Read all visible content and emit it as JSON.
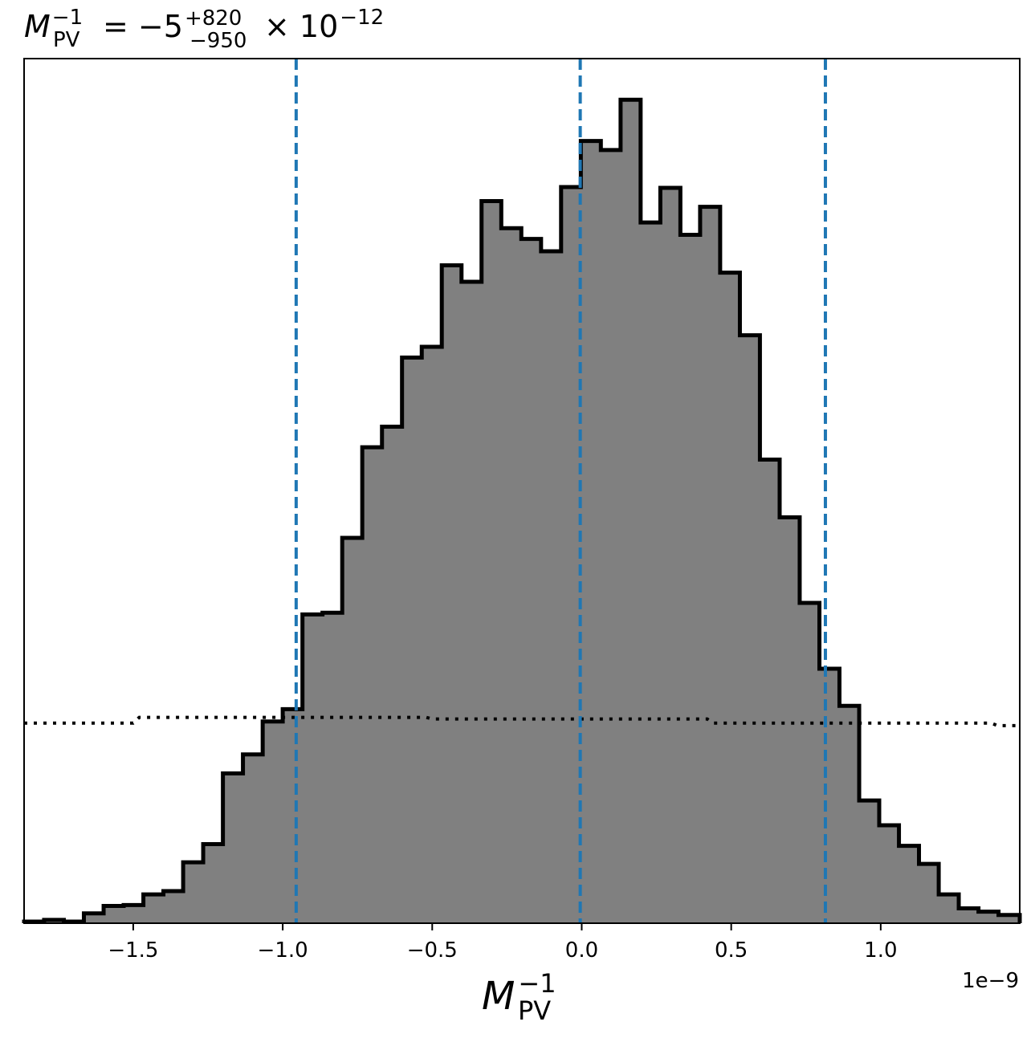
{
  "chart_data": {
    "type": "histogram",
    "title": {
      "symbol": "M",
      "subscript": "PV",
      "superscript": "−1",
      "equals": "= −5",
      "err_upper": "+820",
      "err_lower": "−950",
      "times": "× 10",
      "exponent": "−12"
    },
    "xlabel": {
      "symbol": "M",
      "subscript": "PV",
      "superscript": "−1"
    },
    "x_offset_label": "1e−9",
    "xlim": [
      -1.865,
      1.465
    ],
    "ylim": [
      0,
      1.05
    ],
    "x_scale_factor": 1e-09,
    "xticks": [
      {
        "value": -1.5,
        "label": "−1.5"
      },
      {
        "value": -1.0,
        "label": "−1.0"
      },
      {
        "value": -0.5,
        "label": "−0.5"
      },
      {
        "value": 0.0,
        "label": "0.0"
      },
      {
        "value": 0.5,
        "label": "0.5"
      },
      {
        "value": 1.0,
        "label": "1.0"
      }
    ],
    "y_ticks_visible": false,
    "bin_edges": [
      -1.865,
      -1.798,
      -1.732,
      -1.665,
      -1.599,
      -1.532,
      -1.466,
      -1.399,
      -1.333,
      -1.266,
      -1.2,
      -1.133,
      -1.067,
      -1.0,
      -0.934,
      -0.867,
      -0.801,
      -0.734,
      -0.668,
      -0.601,
      -0.535,
      -0.468,
      -0.402,
      -0.335,
      -0.269,
      -0.202,
      -0.136,
      -0.069,
      -0.003,
      0.064,
      0.13,
      0.197,
      0.263,
      0.33,
      0.396,
      0.463,
      0.529,
      0.596,
      0.662,
      0.729,
      0.795,
      0.862,
      0.928,
      0.995,
      1.061,
      1.128,
      1.194,
      1.261,
      1.327,
      1.394,
      1.465
    ],
    "counts": [
      0.002,
      0.004,
      0.002,
      0.012,
      0.021,
      0.022,
      0.035,
      0.039,
      0.074,
      0.096,
      0.182,
      0.205,
      0.245,
      0.26,
      0.375,
      0.377,
      0.468,
      0.578,
      0.603,
      0.687,
      0.7,
      0.799,
      0.779,
      0.877,
      0.844,
      0.831,
      0.816,
      0.894,
      0.95,
      0.939,
      1.0,
      0.851,
      0.893,
      0.836,
      0.87,
      0.79,
      0.714,
      0.563,
      0.493,
      0.389,
      0.309,
      0.264,
      0.149,
      0.119,
      0.094,
      0.072,
      0.035,
      0.018,
      0.014,
      0.01
    ],
    "prior_curve": {
      "style": "dotted",
      "color": "#000000",
      "x": [
        -1.865,
        -1.5,
        -1.48,
        -0.52,
        -0.5,
        0.42,
        0.44,
        1.37,
        1.39,
        1.465
      ],
      "y": [
        0.243,
        0.243,
        0.25,
        0.25,
        0.248,
        0.248,
        0.243,
        0.243,
        0.24,
        0.24
      ]
    },
    "vertical_lines": {
      "color": "#1f77b4",
      "style": "dashed",
      "x": [
        -0.955,
        -0.005,
        0.815
      ]
    },
    "colors": {
      "fill": "#808080",
      "edge": "#000000",
      "quantile_lines": "#1f77b4"
    }
  }
}
